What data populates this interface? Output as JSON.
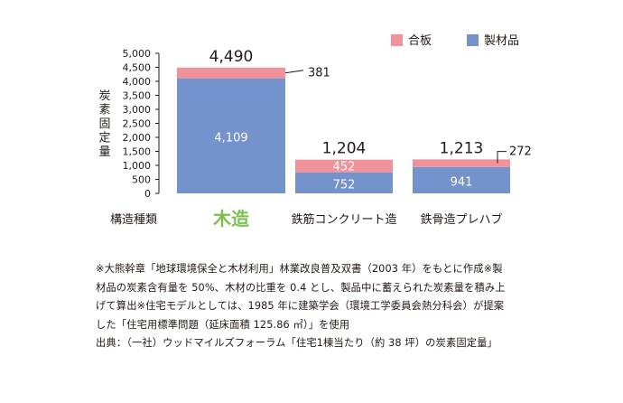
{
  "chart_data": {
    "type": "bar",
    "stacked": true,
    "ylabel": "炭素固定量",
    "xlabel": "構造種類",
    "ylim": [
      0,
      5000
    ],
    "yticks": [
      0,
      500,
      1000,
      1500,
      2000,
      2500,
      3000,
      3500,
      4000,
      4500,
      5000
    ],
    "ytick_labels": [
      "0",
      "500",
      "1,000",
      "1,500",
      "2,000",
      "2,500",
      "3,000",
      "3,500",
      "4,000",
      "4,500",
      "5,000"
    ],
    "categories": [
      "木造",
      "鉄筋コンクリート造",
      "鉄骨造プレハブ"
    ],
    "highlight_category_color": "#7bbf4e",
    "series": [
      {
        "name": "製材品",
        "color": "#7492cc",
        "values": [
          4109,
          752,
          941
        ],
        "labels": [
          "4,109",
          "752",
          "941"
        ]
      },
      {
        "name": "合板",
        "color": "#f0929a",
        "values": [
          381,
          452,
          272
        ],
        "labels": [
          "381",
          "452",
          "272"
        ]
      }
    ],
    "totals": [
      "4,490",
      "1,204",
      "1,213"
    ],
    "legend_position": "top-right",
    "grid": false
  },
  "notes": [
    "※大熊幹章「地球環境保全と木材利用」林業改良普及双書（2003 年）をもとに作成※製",
    "材品の炭素含有量を 50%、木材の比重を 0.4 とし、製品中に蓄えられた炭素量を積み上",
    "げて算出※住宅モデルとしては、1985 年に建築学会（環境工学委員会熱分科会）が提案",
    "した「住宅用標準問題（延床面積 125.86 ㎡）」を使用",
    "出典：（一社）ウッドマイルズフォーラム「住宅1棟当たり（約 38 坪）の炭素固定量」"
  ]
}
